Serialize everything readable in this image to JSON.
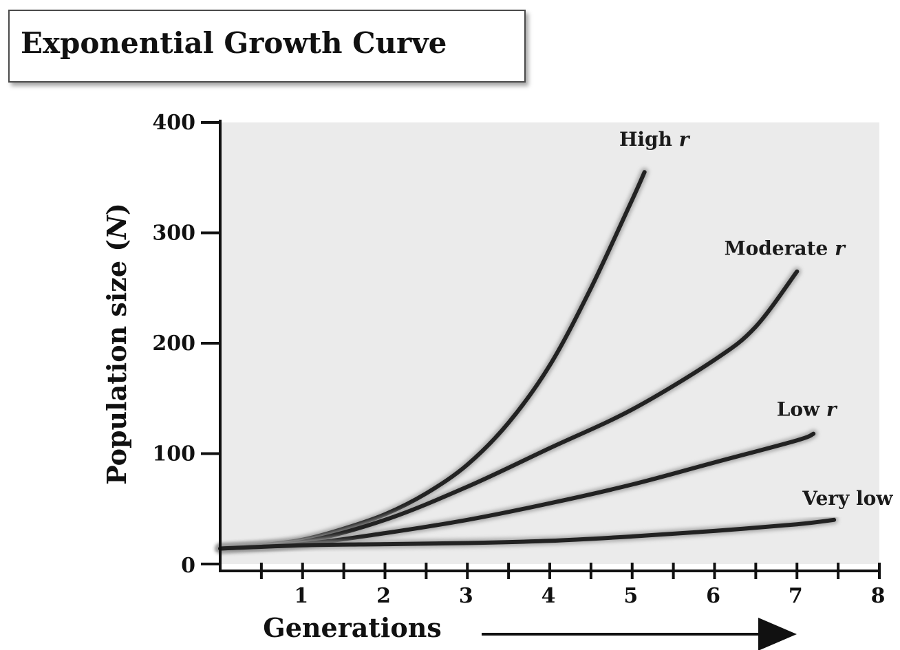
{
  "chart_data": {
    "type": "line",
    "title": "Exponential Growth Curve",
    "xlabel": "Generations",
    "ylabel_text": "Population size (",
    "ylabel_var": "N",
    "ylabel_close": ")",
    "xlim": [
      0,
      8
    ],
    "ylim": [
      0,
      400
    ],
    "x_ticks": [
      1,
      2,
      3,
      4,
      5,
      6,
      7,
      8
    ],
    "y_ticks": [
      0,
      100,
      200,
      300,
      400
    ],
    "grid": false,
    "x_arrow": true,
    "background": "#ebebeb",
    "line_color": "#222222",
    "series": [
      {
        "name": "High r",
        "label_word": "High",
        "x": [
          0,
          0.5,
          1,
          1.5,
          2,
          2.5,
          3,
          3.5,
          4,
          4.5,
          5,
          5.15
        ],
        "y": [
          14,
          17,
          22,
          32,
          45,
          64,
          90,
          128,
          180,
          250,
          330,
          355
        ]
      },
      {
        "name": "Moderate r",
        "label_word": "Moderate",
        "x": [
          0,
          1,
          2,
          3,
          4,
          5,
          6,
          6.5,
          7
        ],
        "y": [
          14,
          20,
          40,
          70,
          105,
          140,
          185,
          215,
          265
        ]
      },
      {
        "name": "Low r",
        "label_word": "Low",
        "x": [
          0,
          1,
          2,
          3,
          4,
          5,
          6,
          7,
          7.2
        ],
        "y": [
          14,
          18,
          28,
          40,
          55,
          72,
          92,
          112,
          118
        ]
      },
      {
        "name": "Very low r",
        "label_word": "Very low",
        "x": [
          0,
          1,
          2,
          3,
          4,
          5,
          6,
          7,
          7.45
        ],
        "y": [
          14,
          17,
          18,
          19,
          21,
          25,
          30,
          36,
          40
        ]
      }
    ]
  }
}
